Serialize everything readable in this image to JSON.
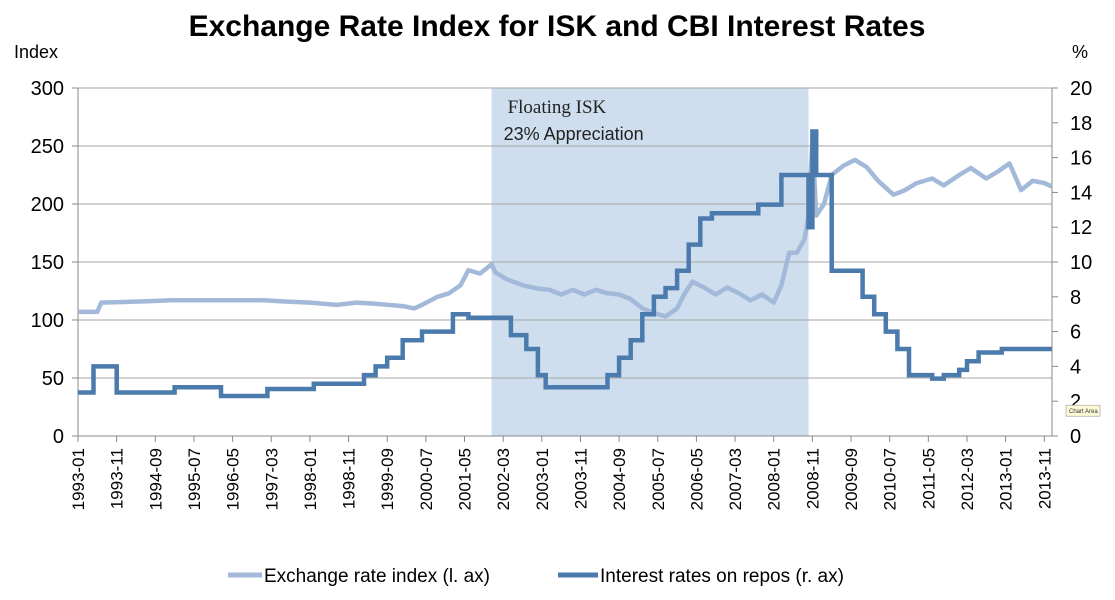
{
  "chart_data": {
    "type": "line",
    "title": "Exchange Rate Index for ISK and CBI Interest Rates",
    "left_axis": {
      "label": "Index",
      "range": [
        0,
        300
      ],
      "ticks": [
        "0",
        "50",
        "100",
        "150",
        "200",
        "250",
        "300"
      ]
    },
    "right_axis": {
      "label": "%",
      "range": [
        0,
        20
      ],
      "ticks": [
        "0",
        "2",
        "4",
        "6",
        "8",
        "10",
        "12",
        "14",
        "16",
        "18",
        "20"
      ]
    },
    "x_tick_labels": [
      "1993-01",
      "1993-11",
      "1994-09",
      "1995-07",
      "1996-05",
      "1997-03",
      "1998-01",
      "1998-11",
      "1999-09",
      "2000-07",
      "2001-05",
      "2002-03",
      "2003-01",
      "2003-11",
      "2004-09",
      "2005-07",
      "2006-05",
      "2007-03",
      "2008-01",
      "2008-11",
      "2009-09",
      "2010-07",
      "2011-05",
      "2012-03",
      "2013-01",
      "2013-11"
    ],
    "x_range": [
      "1993-01",
      "2014-01"
    ],
    "grid": "horizontal",
    "shaded_region": {
      "start": "2001-12",
      "end": "2008-10",
      "label_line1": "Floating ISK",
      "label_line2": "23% Appreciation",
      "color": "#cfdeee"
    },
    "chart_area_tag": "Chart Area",
    "legend_position": "bottom",
    "series": [
      {
        "name": "Exchange rate index (l. ax)",
        "axis": "left",
        "color": "#a3b9da",
        "points": [
          [
            "1993-01",
            107
          ],
          [
            "1993-06",
            107
          ],
          [
            "1993-07",
            115
          ],
          [
            "1994-06",
            116
          ],
          [
            "1995-01",
            117
          ],
          [
            "1996-01",
            117
          ],
          [
            "1997-01",
            117
          ],
          [
            "1997-06",
            116
          ],
          [
            "1998-01",
            115
          ],
          [
            "1998-08",
            113
          ],
          [
            "1999-01",
            115
          ],
          [
            "1999-06",
            114
          ],
          [
            "2000-01",
            112
          ],
          [
            "2000-04",
            110
          ],
          [
            "2000-06",
            113
          ],
          [
            "2000-10",
            120
          ],
          [
            "2001-01",
            123
          ],
          [
            "2001-04",
            130
          ],
          [
            "2001-06",
            143
          ],
          [
            "2001-09",
            140
          ],
          [
            "2001-12",
            148
          ],
          [
            "2002-01",
            141
          ],
          [
            "2002-04",
            135
          ],
          [
            "2002-08",
            130
          ],
          [
            "2002-12",
            127
          ],
          [
            "2003-03",
            126
          ],
          [
            "2003-06",
            122
          ],
          [
            "2003-09",
            126
          ],
          [
            "2003-12",
            122
          ],
          [
            "2004-03",
            126
          ],
          [
            "2004-06",
            123
          ],
          [
            "2004-09",
            122
          ],
          [
            "2004-12",
            118
          ],
          [
            "2005-03",
            110
          ],
          [
            "2005-06",
            106
          ],
          [
            "2005-09",
            103
          ],
          [
            "2005-12",
            110
          ],
          [
            "2006-02",
            123
          ],
          [
            "2006-04",
            133
          ],
          [
            "2006-07",
            128
          ],
          [
            "2006-10",
            122
          ],
          [
            "2007-01",
            128
          ],
          [
            "2007-04",
            123
          ],
          [
            "2007-07",
            117
          ],
          [
            "2007-10",
            122
          ],
          [
            "2008-01",
            115
          ],
          [
            "2008-03",
            130
          ],
          [
            "2008-05",
            158
          ],
          [
            "2008-07",
            158
          ],
          [
            "2008-09",
            170
          ],
          [
            "2008-10",
            190
          ],
          [
            "2008-11",
            255
          ],
          [
            "2008-12",
            190
          ],
          [
            "2009-02",
            200
          ],
          [
            "2009-04",
            225
          ],
          [
            "2009-07",
            233
          ],
          [
            "2009-10",
            238
          ],
          [
            "2010-01",
            232
          ],
          [
            "2010-04",
            220
          ],
          [
            "2010-08",
            208
          ],
          [
            "2010-11",
            212
          ],
          [
            "2011-02",
            218
          ],
          [
            "2011-06",
            222
          ],
          [
            "2011-09",
            216
          ],
          [
            "2012-01",
            225
          ],
          [
            "2012-04",
            231
          ],
          [
            "2012-08",
            222
          ],
          [
            "2012-11",
            228
          ],
          [
            "2013-02",
            235
          ],
          [
            "2013-05",
            212
          ],
          [
            "2013-08",
            220
          ],
          [
            "2013-11",
            218
          ],
          [
            "2014-01",
            215
          ]
        ]
      },
      {
        "name": "Interest rates on repos (r. ax)",
        "axis": "right",
        "color": "#4b7bac",
        "points": [
          [
            "1993-01",
            2.5
          ],
          [
            "1993-04",
            2.5
          ],
          [
            "1993-05",
            4.0
          ],
          [
            "1993-10",
            4.0
          ],
          [
            "1993-11",
            2.5
          ],
          [
            "1995-01",
            2.5
          ],
          [
            "1995-02",
            2.8
          ],
          [
            "1996-01",
            2.8
          ],
          [
            "1996-02",
            2.3
          ],
          [
            "1997-01",
            2.3
          ],
          [
            "1997-02",
            2.7
          ],
          [
            "1998-01",
            2.7
          ],
          [
            "1998-02",
            3.0
          ],
          [
            "1999-01",
            3.0
          ],
          [
            "1999-03",
            3.5
          ],
          [
            "1999-06",
            4.0
          ],
          [
            "1999-09",
            4.5
          ],
          [
            "2000-01",
            5.5
          ],
          [
            "2000-06",
            6.0
          ],
          [
            "2001-01",
            6.0
          ],
          [
            "2001-02",
            7.0
          ],
          [
            "2001-06",
            6.8
          ],
          [
            "2002-03",
            6.8
          ],
          [
            "2002-05",
            5.8
          ],
          [
            "2002-09",
            5.0
          ],
          [
            "2002-12",
            3.5
          ],
          [
            "2003-02",
            2.8
          ],
          [
            "2004-03",
            2.8
          ],
          [
            "2004-06",
            3.5
          ],
          [
            "2004-09",
            4.5
          ],
          [
            "2004-12",
            5.5
          ],
          [
            "2005-03",
            7.0
          ],
          [
            "2005-06",
            8.0
          ],
          [
            "2005-09",
            8.5
          ],
          [
            "2005-12",
            9.5
          ],
          [
            "2006-03",
            11.0
          ],
          [
            "2006-06",
            12.5
          ],
          [
            "2006-09",
            12.8
          ],
          [
            "2007-06",
            12.8
          ],
          [
            "2007-09",
            13.3
          ],
          [
            "2008-03",
            15.0
          ],
          [
            "2008-09",
            15.0
          ],
          [
            "2008-10",
            12.0
          ],
          [
            "2008-11",
            17.5
          ],
          [
            "2008-12",
            15.0
          ],
          [
            "2009-03",
            15.0
          ],
          [
            "2009-04",
            9.5
          ],
          [
            "2009-09",
            9.5
          ],
          [
            "2009-12",
            8.0
          ],
          [
            "2010-03",
            7.0
          ],
          [
            "2010-06",
            6.0
          ],
          [
            "2010-09",
            5.0
          ],
          [
            "2010-12",
            3.5
          ],
          [
            "2011-06",
            3.3
          ],
          [
            "2011-09",
            3.5
          ],
          [
            "2012-01",
            3.8
          ],
          [
            "2012-03",
            4.3
          ],
          [
            "2012-06",
            4.8
          ],
          [
            "2012-10",
            4.8
          ],
          [
            "2012-12",
            5.0
          ],
          [
            "2014-01",
            5.0
          ]
        ]
      }
    ]
  }
}
